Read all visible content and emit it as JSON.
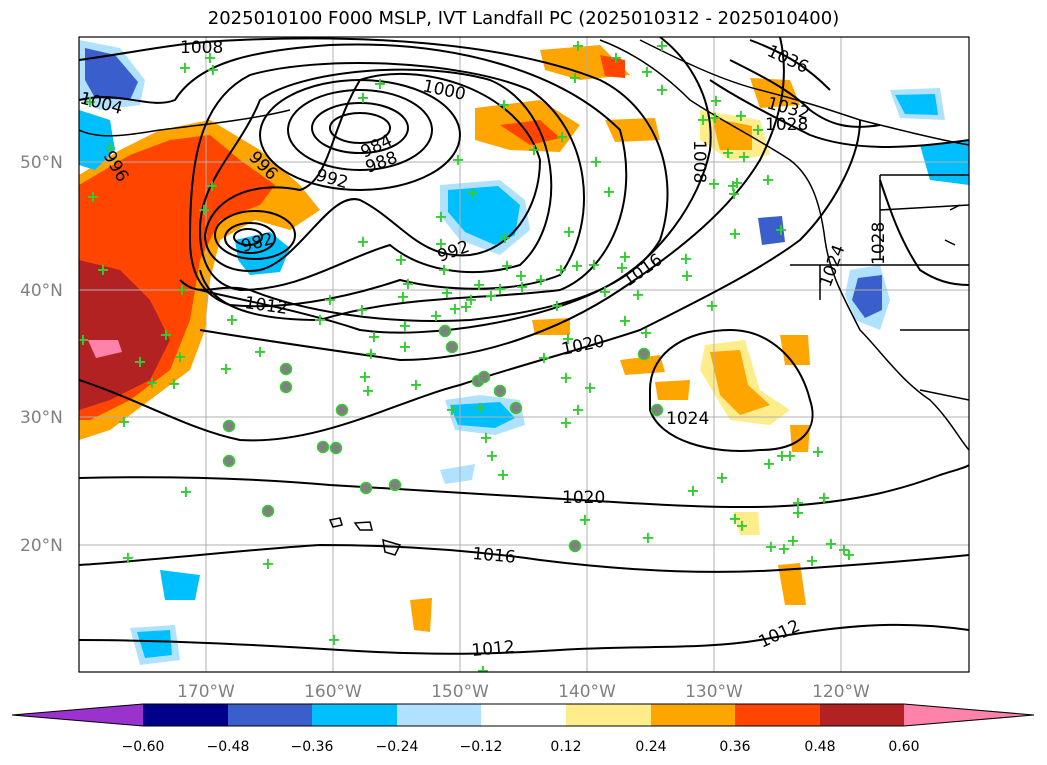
{
  "title": "2025010100 F000 MSLP, IVT Landfall PC (2025010312 - 2025010400)",
  "lat_labels": [
    "50°N",
    "40°N",
    "30°N",
    "20°N"
  ],
  "lon_labels": [
    "170°W",
    "160°W",
    "150°W",
    "140°W",
    "130°W",
    "120°W"
  ],
  "contour_labels": [
    "1008",
    "1000",
    "984",
    "988",
    "996",
    "992",
    "982",
    "992",
    "1012",
    "1016",
    "1020",
    "1024",
    "1020",
    "1016",
    "1012",
    "1036",
    "1032",
    "1028",
    "1008",
    "1028",
    "1024",
    "1012",
    "1004",
    "996"
  ],
  "colorbar": {
    "ticks": [
      "−0.60",
      "−0.48",
      "−0.36",
      "−0.24",
      "−0.12",
      "0.12",
      "0.24",
      "0.36",
      "0.48",
      "0.60"
    ],
    "colors": [
      "#9a32cd",
      "#00008b",
      "#3a5fcd",
      "#00bfff",
      "#b0e2ff",
      "#ffffff",
      "#ffec8b",
      "#ffa500",
      "#ff4500",
      "#b22222",
      "#ff82ab"
    ]
  },
  "marker_colors": {
    "cross": "#32cd32",
    "circle": "#808080"
  }
}
